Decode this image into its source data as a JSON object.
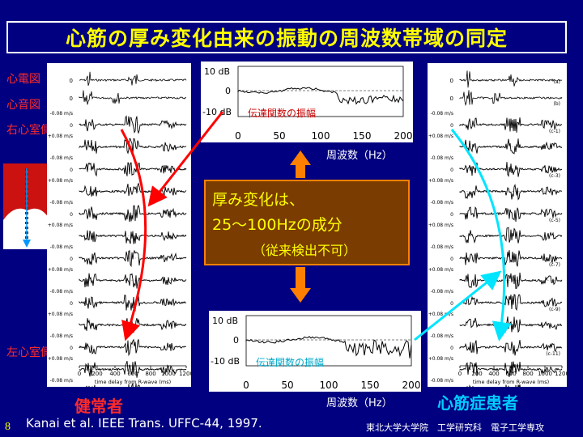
{
  "title": "心筋の厚み変化由来の振動の周波数帯域の同定",
  "left_labels": {
    "ecg": "心電図",
    "pcg": "心音図",
    "rv": "右心室側",
    "lv": "左心室側"
  },
  "center_box": {
    "line1": "厚み変化は、",
    "line2": "25～100Hzの成分",
    "line3": "（従来検出不可）"
  },
  "tf_top": {
    "y_ticks": [
      "10 dB",
      "0",
      "-10 dB"
    ],
    "x_ticks": [
      "0",
      "50",
      "100",
      "150",
      "200"
    ],
    "label": "伝達関数の振幅",
    "xlabel": "周波数（Hz）"
  },
  "tf_bottom": {
    "y_ticks": [
      "10 dB",
      "0",
      "-10 dB"
    ],
    "x_ticks": [
      "0",
      "50",
      "100",
      "150",
      "200"
    ],
    "label": "伝達関数の振幅",
    "xlabel": "周波数（Hz）"
  },
  "left_plot": {
    "tick_plus": "+0.08 m/s",
    "tick_minus": "-0.08 m/s",
    "tick_zero": "0",
    "x_ticks": [
      "0",
      "200",
      "400",
      "600",
      "800",
      "1000",
      "1200"
    ],
    "xlabel": "time delay from R-wave (ms)"
  },
  "right_plot": {
    "tick_plus": "+0.08 m/s",
    "tick_minus": "-0.08 m/s",
    "tick_zero": "0",
    "x_ticks": [
      "0",
      "200",
      "400",
      "600",
      "800",
      "1000",
      "1200"
    ],
    "xlabel": "time delay from R-wave (ms)",
    "trace_labels": [
      "(a)",
      "(b)",
      "(c-1)",
      "(c-3)",
      "(c-5)",
      "(c-7)",
      "(c-9)",
      "(c-11)",
      "(c-13)"
    ]
  },
  "healthy_label": "健常者",
  "patient_label": "心筋症患者",
  "citation": "Kanai   et al. IEEE Trans. UFFC-44, 1997.",
  "page_number": "8",
  "affiliation": "東北大学大学院　工学研究科　電子工学専攻",
  "colors": {
    "background": "#000080",
    "title": "#ffff00",
    "red_label": "#ff2a2a",
    "arrow_red": "#ff0000",
    "arrow_cyan": "#00e5ff",
    "arrow_orange": "#ff8000"
  }
}
